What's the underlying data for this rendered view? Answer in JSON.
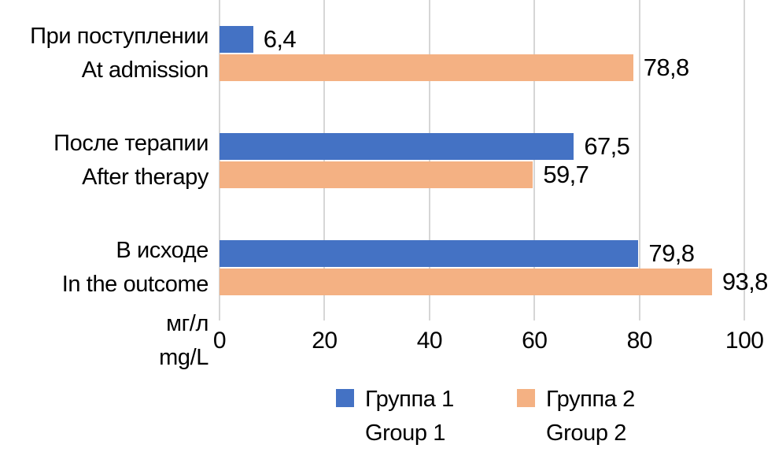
{
  "chart_data": {
    "type": "bar",
    "orientation": "horizontal",
    "title": "",
    "categories": [
      {
        "line1": "При поступлении",
        "line2": "At admission"
      },
      {
        "line1": "После терапии",
        "line2": "After therapy"
      },
      {
        "line1": "В исходе",
        "line2": "In the outcome"
      }
    ],
    "series": [
      {
        "name_line1": "Группа 1",
        "name_line2": "Group 1",
        "color": "#4472C4",
        "values": [
          6.4,
          67.5,
          79.8
        ],
        "value_labels": [
          "6,4",
          "67,5",
          "79,8"
        ]
      },
      {
        "name_line1": "Группа 2",
        "name_line2": "Group 2",
        "color": "#F4B183",
        "values": [
          78.8,
          59.7,
          93.8
        ],
        "value_labels": [
          "78,8",
          "59,7",
          "93,8"
        ]
      }
    ],
    "x_axis": {
      "min": 0,
      "max": 100,
      "ticks": [
        0,
        20,
        40,
        60,
        80,
        100
      ],
      "tick_labels": [
        "0",
        "20",
        "40",
        "60",
        "80",
        "100"
      ],
      "unit_line1": "мг/л",
      "unit_line2": "mg/L"
    },
    "gridline_color": "#D6D6D6",
    "text_color": "#000000",
    "legend_position": "bottom",
    "grid": true
  }
}
